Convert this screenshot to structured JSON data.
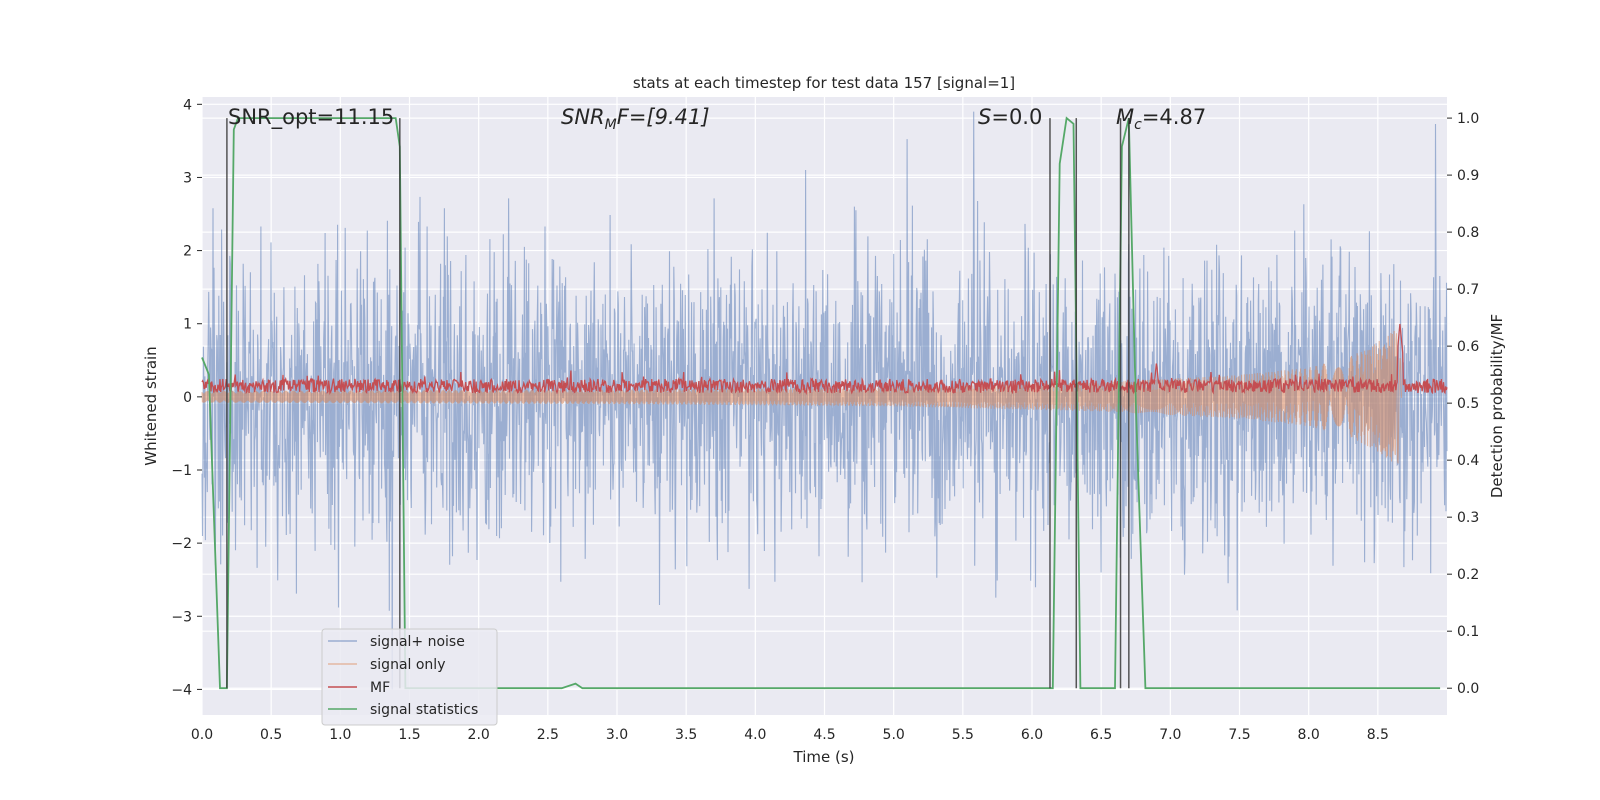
{
  "chart_data": {
    "type": "line",
    "title": "stats at each timestep for test data 157 [signal=1]",
    "xlabel": "Time (s)",
    "ylabel": "Whitened strain",
    "y2label": "Detection probability/MF",
    "xlim": [
      0.0,
      9.0
    ],
    "ylim": [
      -4.35,
      4.1
    ],
    "y2lim": [
      -0.047,
      1.037
    ],
    "xticks": [
      "0.0",
      "0.5",
      "1.0",
      "1.5",
      "2.0",
      "2.5",
      "3.0",
      "3.5",
      "4.0",
      "4.5",
      "5.0",
      "5.5",
      "6.0",
      "6.5",
      "7.0",
      "7.5",
      "8.0",
      "8.5"
    ],
    "yticks": [
      "4",
      "3",
      "2",
      "1",
      "0",
      "−1",
      "−2",
      "−3",
      "−4"
    ],
    "y2ticks": [
      "1.0",
      "0.9",
      "0.8",
      "0.7",
      "0.6",
      "0.5",
      "0.4",
      "0.3",
      "0.2",
      "0.1",
      "0.0"
    ],
    "grid": true,
    "legend_position": "lower-left",
    "annotations": {
      "snr_opt": "SNR_opt=11.15",
      "snr_mf_prefix": "SNR",
      "snr_mf_sub": "M",
      "snr_mf_suffix": "F=[9.41]",
      "s_prefix": "S",
      "s_suffix": "=0.0",
      "mc_prefix": "M",
      "mc_sub": "c",
      "mc_suffix": "=4.87"
    },
    "series": [
      {
        "name": "signal+ noise",
        "color": "#4c72b0",
        "axis": "left",
        "style": "noise",
        "t_range": [
          0.0,
          9.0
        ],
        "envelope_max": 3.9,
        "envelope_min": -4.0
      },
      {
        "name": "signal only",
        "color": "#dd8452",
        "axis": "left",
        "style": "chirp",
        "t_range": [
          0.0,
          8.67
        ],
        "envelope": [
          [
            0.0,
            0.08
          ],
          [
            3.0,
            0.1
          ],
          [
            5.0,
            0.13
          ],
          [
            6.5,
            0.2
          ],
          [
            7.5,
            0.3
          ],
          [
            8.0,
            0.4
          ],
          [
            8.3,
            0.55
          ],
          [
            8.5,
            0.75
          ],
          [
            8.6,
            0.9
          ],
          [
            8.66,
            0.95
          ]
        ]
      },
      {
        "name": "MF",
        "color": "#c44e52",
        "axis": "left",
        "style": "noise-baseline",
        "t_range": [
          0.0,
          9.0
        ],
        "baseline": 0.15,
        "amplitude": 0.12,
        "peaks": [
          [
            6.9,
            0.48
          ],
          [
            8.66,
            1.0
          ]
        ]
      },
      {
        "name": "signal statistics",
        "color": "#55a868",
        "axis": "right",
        "style": "line",
        "x": [
          0.0,
          0.05,
          0.13,
          0.18,
          0.23,
          0.26,
          0.3,
          1.2,
          1.4,
          1.43,
          1.47,
          1.5,
          2.55,
          2.6,
          2.7,
          2.75,
          2.8,
          6.1,
          6.15,
          6.2,
          6.25,
          6.3,
          6.35,
          6.4,
          6.45,
          6.55,
          6.6,
          6.65,
          6.7,
          6.75,
          6.82,
          6.9,
          8.95
        ],
        "y": [
          0.58,
          0.55,
          0.0,
          0.0,
          0.98,
          1.0,
          1.0,
          1.0,
          1.0,
          0.95,
          0.0,
          0.0,
          0.0,
          0.0,
          0.008,
          0.0,
          0.0,
          0.0,
          0.0,
          0.92,
          1.0,
          0.99,
          0.0,
          0.0,
          0.0,
          0.0,
          0.0,
          0.95,
          1.0,
          0.5,
          0.0,
          0.0,
          0.0
        ]
      }
    ],
    "vlines": [
      0.18,
      1.43,
      6.13,
      6.32,
      6.64,
      6.7
    ]
  }
}
